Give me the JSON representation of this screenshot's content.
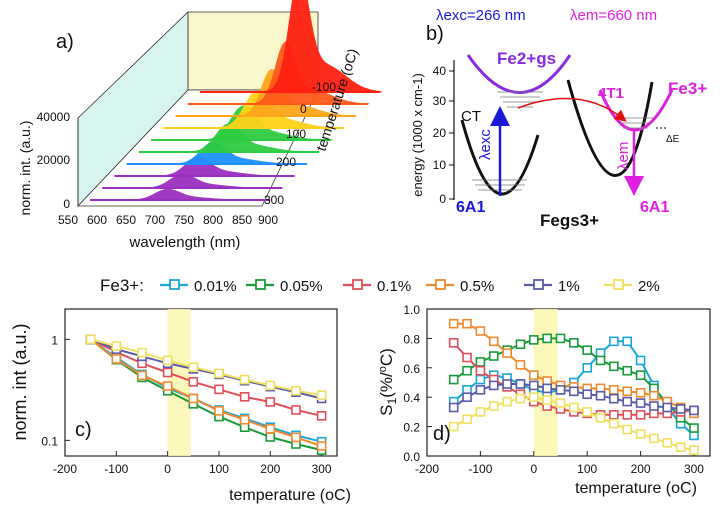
{
  "panel_a": {
    "letter": "a)",
    "title": "",
    "ylabel": "norm. int. (a.u.)",
    "xlabel": "wavelength (nm)",
    "zlabel": "temperature (",
    "zlabel_unit": "oC",
    "yticks": [
      "0",
      "20000",
      "40000"
    ],
    "xticks": [
      "550",
      "600",
      "650",
      "700",
      "750",
      "800",
      "850",
      "900"
    ],
    "ztick_labels": [
      "-100",
      "0",
      "100",
      "200",
      "300"
    ]
  },
  "panel_b": {
    "letter": "b)",
    "lambda_exc": "λexc=266 nm",
    "lambda_em": "λem=660 nm",
    "ylabel": "energy (1000 x cm-1)",
    "yticks": [
      "0",
      "10",
      "20",
      "30",
      "40"
    ],
    "fe2_label": "Fe2+gs",
    "fe3_label": "Fe3+",
    "fe3_gs_label": "Fegs3+",
    "ct_label": "CT",
    "t1_label": "4T1",
    "a1_left": "6A1",
    "a1_right": "6A1",
    "delta_e": "ΔE",
    "exc_arrow_label": "λexc",
    "em_arrow_label": "λem",
    "colors": {
      "blue": "#1a1ad6",
      "magenta": "#e020e0",
      "purple": "#8a2be2",
      "red": "#e01010"
    }
  },
  "legend": {
    "prefix": "Fe3+:",
    "entries": [
      {
        "name": "0.01%",
        "color": "#1aa6d8"
      },
      {
        "name": "0.05%",
        "color": "#1a9a3c"
      },
      {
        "name": "0.1%",
        "color": "#e0505a"
      },
      {
        "name": "0.5%",
        "color": "#f08a30"
      },
      {
        "name": "1%",
        "color": "#5a5aa8"
      },
      {
        "name": "2%",
        "color": "#f0e060"
      }
    ]
  },
  "chart_data": [
    {
      "type": "area",
      "panel": "a",
      "title": "",
      "xlabel": "wavelength (nm)",
      "ylabel": "norm. int. (a.u.)",
      "zlabel": "temperature (oC)",
      "xlim": [
        550,
        900
      ],
      "ylim": [
        0,
        40000
      ],
      "series": [
        {
          "temperature": 300,
          "color": "#9b30c0",
          "peak_nm": 700,
          "peak": 3500
        },
        {
          "temperature": 250,
          "color": "#9b30c0",
          "peak_nm": 705,
          "peak": 4500
        },
        {
          "temperature": 200,
          "color": "#9b30c0",
          "peak_nm": 710,
          "peak": 6000
        },
        {
          "temperature": 150,
          "color": "#1e90ff",
          "peak_nm": 715,
          "peak": 7000
        },
        {
          "temperature": 100,
          "color": "#2ecc40",
          "peak_nm": 720,
          "peak": 9000
        },
        {
          "temperature": 50,
          "color": "#2ecc40",
          "peak_nm": 725,
          "peak": 11000
        },
        {
          "temperature": 0,
          "color": "#ffd21a",
          "peak_nm": 728,
          "peak": 12000
        },
        {
          "temperature": -50,
          "color": "#ffa51a",
          "peak_nm": 732,
          "peak": 15000
        },
        {
          "temperature": -100,
          "color": "#ff5a1a",
          "peak_nm": 735,
          "peak": 20000
        },
        {
          "temperature": -150,
          "color": "#ff2010",
          "peak_nm": 738,
          "peak": 38000
        }
      ]
    },
    {
      "type": "line",
      "panel": "c",
      "letter": "c)",
      "title": "",
      "xlabel": "temperature (oC)",
      "ylabel": "norm. int (a.u.)",
      "yscale": "log",
      "xlim": [
        -200,
        330
      ],
      "ylim": [
        0.07,
        2
      ],
      "xticks": [
        "-200",
        "-100",
        "0",
        "100",
        "200",
        "300"
      ],
      "yticks": [
        "0.1",
        "1"
      ],
      "highlight": [
        0,
        45
      ],
      "x": [
        -150,
        -100,
        -50,
        0,
        50,
        100,
        150,
        200,
        250,
        300
      ],
      "series": [
        {
          "name": "0.01%",
          "color": "#1aa6d8",
          "values": [
            1.0,
            0.66,
            0.45,
            0.33,
            0.26,
            0.2,
            0.165,
            0.135,
            0.112,
            0.097
          ]
        },
        {
          "name": "0.05%",
          "color": "#1a9a3c",
          "values": [
            1.0,
            0.63,
            0.42,
            0.31,
            0.23,
            0.172,
            0.135,
            0.108,
            0.092,
            0.08
          ]
        },
        {
          "name": "0.1%",
          "color": "#e0505a",
          "values": [
            1.0,
            0.75,
            0.58,
            0.47,
            0.38,
            0.32,
            0.27,
            0.24,
            0.2,
            0.175
          ]
        },
        {
          "name": "0.5%",
          "color": "#f08a30",
          "values": [
            1.0,
            0.64,
            0.44,
            0.345,
            0.26,
            0.196,
            0.16,
            0.13,
            0.107,
            0.088
          ]
        },
        {
          "name": "1%",
          "color": "#5a5aa8",
          "values": [
            1.0,
            0.8,
            0.68,
            0.58,
            0.51,
            0.45,
            0.39,
            0.34,
            0.3,
            0.26
          ]
        },
        {
          "name": "2%",
          "color": "#f0e060",
          "values": [
            1.0,
            0.86,
            0.74,
            0.62,
            0.53,
            0.46,
            0.4,
            0.35,
            0.31,
            0.28
          ]
        }
      ]
    },
    {
      "type": "line",
      "panel": "d",
      "letter": "d)",
      "title": "",
      "xlabel": "temperature (oC)",
      "ylabel": "S1(%/oC)",
      "xlim": [
        -200,
        330
      ],
      "ylim": [
        0,
        1.0
      ],
      "xticks": [
        "-200",
        "-100",
        "0",
        "100",
        "200",
        "300"
      ],
      "yticks": [
        "0.0",
        "0.2",
        "0.4",
        "0.6",
        "0.8",
        "1.0"
      ],
      "highlight": [
        0,
        45
      ],
      "x": [
        -150,
        -125,
        -100,
        -75,
        -50,
        -25,
        0,
        25,
        50,
        75,
        100,
        125,
        150,
        175,
        200,
        225,
        250,
        275,
        300
      ],
      "series": [
        {
          "name": "0.01%",
          "color": "#1aa6d8",
          "values": [
            0.37,
            0.45,
            0.52,
            0.55,
            0.53,
            0.49,
            0.45,
            0.43,
            0.45,
            0.5,
            0.6,
            0.7,
            0.78,
            0.78,
            0.65,
            0.48,
            0.33,
            0.22,
            0.14
          ]
        },
        {
          "name": "0.05%",
          "color": "#1a9a3c",
          "values": [
            0.52,
            0.58,
            0.64,
            0.68,
            0.72,
            0.76,
            0.79,
            0.8,
            0.8,
            0.77,
            0.72,
            0.65,
            0.61,
            0.58,
            0.55,
            0.46,
            0.36,
            0.26,
            0.19
          ]
        },
        {
          "name": "0.1%",
          "color": "#e0505a",
          "values": [
            0.77,
            0.67,
            0.58,
            0.52,
            0.47,
            0.42,
            0.37,
            0.34,
            0.32,
            0.3,
            0.29,
            0.28,
            0.28,
            0.28,
            0.28,
            0.29,
            0.29,
            0.3,
            0.31
          ]
        },
        {
          "name": "0.5%",
          "color": "#f08a30",
          "values": [
            0.9,
            0.9,
            0.85,
            0.78,
            0.7,
            0.62,
            0.55,
            0.51,
            0.48,
            0.47,
            0.46,
            0.46,
            0.45,
            0.44,
            0.43,
            0.41,
            0.37,
            0.33,
            0.29
          ]
        },
        {
          "name": "1%",
          "color": "#5a5aa8",
          "values": [
            0.33,
            0.4,
            0.45,
            0.48,
            0.49,
            0.49,
            0.48,
            0.46,
            0.45,
            0.44,
            0.42,
            0.41,
            0.39,
            0.37,
            0.36,
            0.34,
            0.33,
            0.32,
            0.31
          ]
        },
        {
          "name": "2%",
          "color": "#f0e060",
          "values": [
            0.2,
            0.25,
            0.3,
            0.34,
            0.37,
            0.39,
            0.4,
            0.38,
            0.36,
            0.33,
            0.3,
            0.26,
            0.22,
            0.18,
            0.15,
            0.12,
            0.09,
            0.06,
            0.04
          ]
        }
      ]
    }
  ]
}
